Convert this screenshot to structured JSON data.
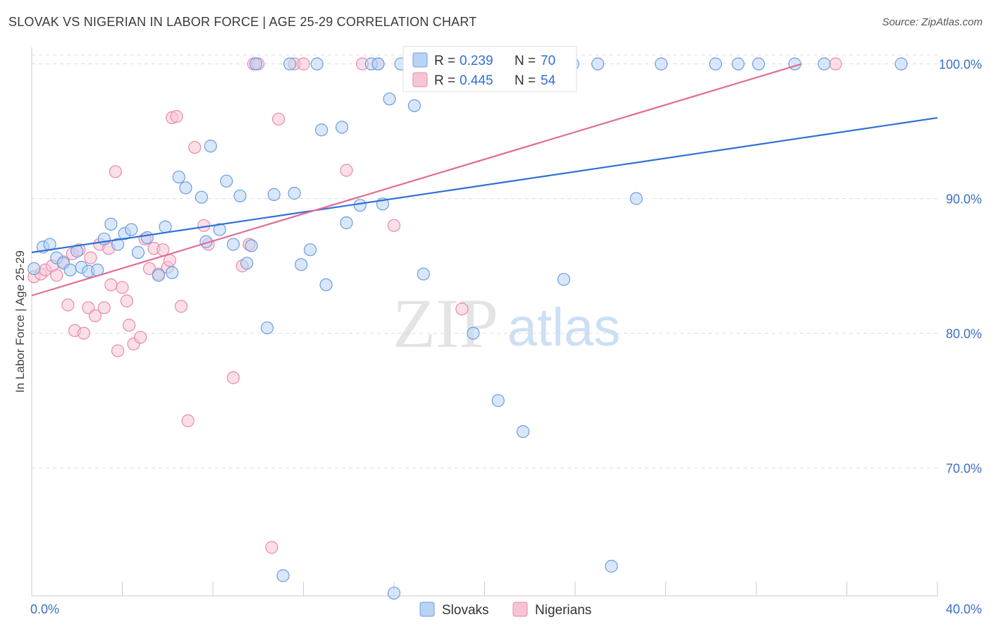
{
  "header": {
    "title": "SLOVAK VS NIGERIAN IN LABOR FORCE | AGE 25-29 CORRELATION CHART",
    "source": "Source: ZipAtlas.com"
  },
  "watermark": {
    "zip": "ZIP",
    "atlas": "atlas"
  },
  "colors": {
    "slovak_fill": "#b9d3f5",
    "slovak_stroke": "#6b9de0",
    "slovak_line": "#2f6fd6",
    "nigerian_fill": "#f7c4d3",
    "nigerian_stroke": "#e88aaa",
    "nigerian_line": "#e06c97",
    "tick_label": "#3a6fc4",
    "grid": "#dddddd"
  },
  "chart_data": {
    "type": "scatter",
    "title": "SLOVAK VS NIGERIAN IN LABOR FORCE | AGE 25-29 CORRELATION CHART",
    "ylabel": "In Labor Force | Age 25-29",
    "xlim": [
      0,
      40
    ],
    "ylim": [
      60.5,
      101.5
    ],
    "x_tick_labels": [
      "0.0%",
      "40.0%"
    ],
    "y_ticks": [
      70,
      80,
      90,
      100
    ],
    "y_tick_labels": [
      "70.0%",
      "80.0%",
      "90.0%",
      "100.0%"
    ],
    "grid": true,
    "legend": {
      "placement": "top-center",
      "rows": [
        {
          "r_label": "R =",
          "r_value": "0.239",
          "n_label": "N =",
          "n_value": "70"
        },
        {
          "r_label": "R =",
          "r_value": "0.445",
          "n_label": "N =",
          "n_value": "54"
        }
      ]
    },
    "series": [
      {
        "name": "Slovaks",
        "trend": [
          [
            0,
            86.0
          ],
          [
            40,
            96.0
          ]
        ],
        "points": [
          [
            0.1,
            84.8
          ],
          [
            0.5,
            86.4
          ],
          [
            0.8,
            86.6
          ],
          [
            1.1,
            85.6
          ],
          [
            1.4,
            85.2
          ],
          [
            1.7,
            84.7
          ],
          [
            2.0,
            86.1
          ],
          [
            2.2,
            84.9
          ],
          [
            2.5,
            84.6
          ],
          [
            2.9,
            84.7
          ],
          [
            3.2,
            87.0
          ],
          [
            3.5,
            88.1
          ],
          [
            3.8,
            86.6
          ],
          [
            4.1,
            87.4
          ],
          [
            4.4,
            87.7
          ],
          [
            4.7,
            86.0
          ],
          [
            5.1,
            87.1
          ],
          [
            5.6,
            84.3
          ],
          [
            5.9,
            87.9
          ],
          [
            6.2,
            84.5
          ],
          [
            6.5,
            91.6
          ],
          [
            6.8,
            90.8
          ],
          [
            7.5,
            90.1
          ],
          [
            7.7,
            86.8
          ],
          [
            7.9,
            93.9
          ],
          [
            8.3,
            87.7
          ],
          [
            8.6,
            91.3
          ],
          [
            8.9,
            86.6
          ],
          [
            9.2,
            90.2
          ],
          [
            9.5,
            85.2
          ],
          [
            9.7,
            86.5
          ],
          [
            9.9,
            100.0
          ],
          [
            10.4,
            80.4
          ],
          [
            10.7,
            90.3
          ],
          [
            11.1,
            62.0
          ],
          [
            11.4,
            100.0
          ],
          [
            11.6,
            90.4
          ],
          [
            11.9,
            85.1
          ],
          [
            12.3,
            86.2
          ],
          [
            12.6,
            100.0
          ],
          [
            12.8,
            95.1
          ],
          [
            13.0,
            83.6
          ],
          [
            13.7,
            95.3
          ],
          [
            13.9,
            88.2
          ],
          [
            14.5,
            89.5
          ],
          [
            15.0,
            100.0
          ],
          [
            15.3,
            100.0
          ],
          [
            15.5,
            89.6
          ],
          [
            15.8,
            97.4
          ],
          [
            16.0,
            60.7
          ],
          [
            16.3,
            100.0
          ],
          [
            16.9,
            96.9
          ],
          [
            17.3,
            84.4
          ],
          [
            18.5,
            100.0
          ],
          [
            19.5,
            80.0
          ],
          [
            20.6,
            75.0
          ],
          [
            21.5,
            100.0
          ],
          [
            21.7,
            72.7
          ],
          [
            23.5,
            84.0
          ],
          [
            23.9,
            100.0
          ],
          [
            25.0,
            100.0
          ],
          [
            25.6,
            62.7
          ],
          [
            26.7,
            90.0
          ],
          [
            27.8,
            100.0
          ],
          [
            30.2,
            100.0
          ],
          [
            31.2,
            100.0
          ],
          [
            32.1,
            100.0
          ],
          [
            33.7,
            100.0
          ],
          [
            35.0,
            100.0
          ],
          [
            38.4,
            100.0
          ]
        ]
      },
      {
        "name": "Nigerians",
        "trend": [
          [
            0,
            82.8
          ],
          [
            34.0,
            100.0
          ]
        ],
        "points": [
          [
            0.1,
            84.2
          ],
          [
            0.4,
            84.4
          ],
          [
            0.6,
            84.7
          ],
          [
            0.9,
            85.0
          ],
          [
            1.1,
            84.3
          ],
          [
            1.4,
            85.3
          ],
          [
            1.6,
            82.1
          ],
          [
            1.8,
            85.9
          ],
          [
            1.9,
            80.2
          ],
          [
            2.1,
            86.2
          ],
          [
            2.3,
            80.0
          ],
          [
            2.5,
            81.9
          ],
          [
            2.6,
            85.6
          ],
          [
            2.8,
            81.3
          ],
          [
            3.0,
            86.6
          ],
          [
            3.2,
            81.9
          ],
          [
            3.4,
            86.3
          ],
          [
            3.5,
            83.6
          ],
          [
            3.7,
            92.0
          ],
          [
            3.8,
            78.7
          ],
          [
            4.0,
            83.4
          ],
          [
            4.2,
            82.4
          ],
          [
            4.3,
            80.6
          ],
          [
            4.5,
            79.2
          ],
          [
            4.8,
            79.7
          ],
          [
            5.0,
            87.0
          ],
          [
            5.2,
            84.8
          ],
          [
            5.4,
            86.3
          ],
          [
            5.6,
            84.4
          ],
          [
            5.8,
            86.2
          ],
          [
            6.0,
            84.9
          ],
          [
            6.1,
            85.4
          ],
          [
            6.2,
            96.0
          ],
          [
            6.4,
            96.1
          ],
          [
            6.6,
            82.0
          ],
          [
            6.9,
            73.5
          ],
          [
            7.2,
            93.8
          ],
          [
            7.6,
            88.0
          ],
          [
            7.8,
            86.6
          ],
          [
            8.9,
            76.7
          ],
          [
            9.3,
            85.0
          ],
          [
            9.6,
            86.6
          ],
          [
            9.8,
            100.0
          ],
          [
            10.0,
            100.0
          ],
          [
            10.6,
            64.1
          ],
          [
            10.9,
            95.9
          ],
          [
            11.6,
            100.0
          ],
          [
            12.0,
            100.0
          ],
          [
            13.9,
            92.1
          ],
          [
            14.6,
            100.0
          ],
          [
            15.3,
            100.0
          ],
          [
            16.0,
            88.0
          ],
          [
            19.0,
            81.8
          ],
          [
            35.5,
            100.0
          ]
        ]
      }
    ]
  }
}
